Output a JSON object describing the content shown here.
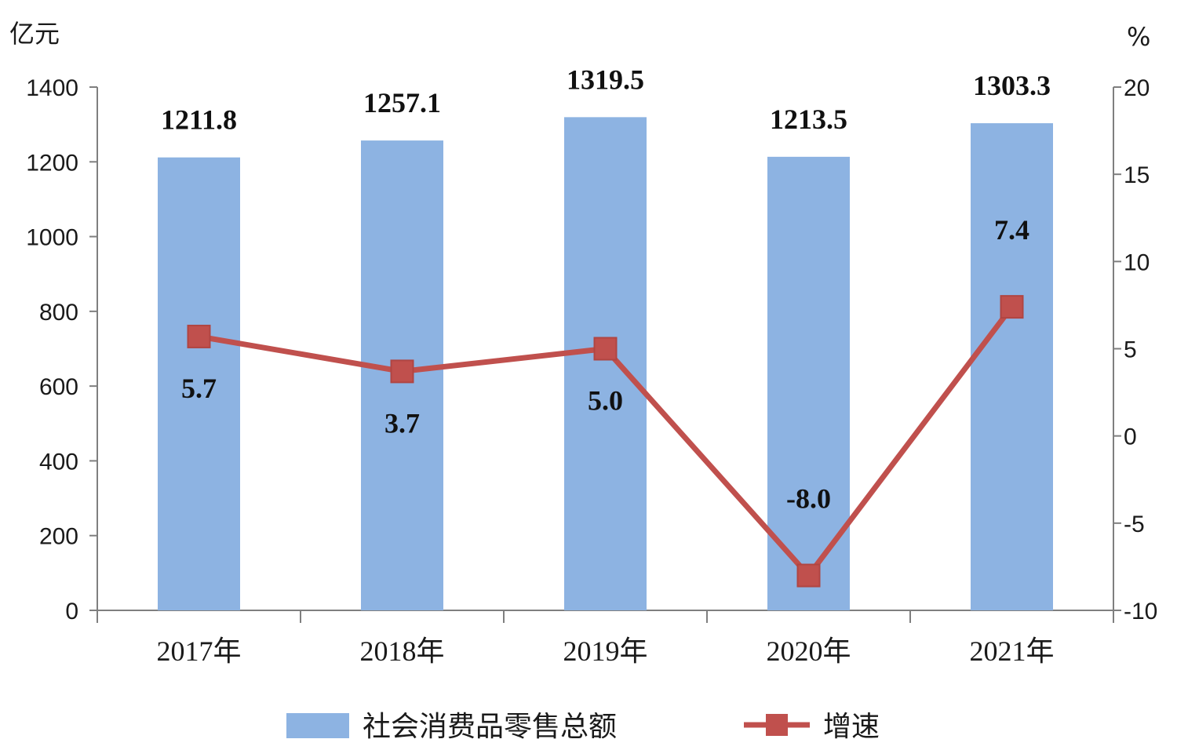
{
  "chart_data": {
    "type": "bar",
    "categories": [
      "2017年",
      "2018年",
      "2019年",
      "2020年",
      "2021年"
    ],
    "series": [
      {
        "name": "社会消费品零售总额",
        "type": "bar",
        "axis": "left",
        "color": "#8DB3E2",
        "values": [
          1211.8,
          1257.1,
          1319.5,
          1213.5,
          1303.3
        ],
        "labels": [
          "1211.8",
          "1257.1",
          "1319.5",
          "1213.5",
          "1303.3"
        ]
      },
      {
        "name": "增速",
        "type": "line",
        "axis": "right",
        "color": "#C0504D",
        "values": [
          5.7,
          3.7,
          5.0,
          -8.0,
          7.4
        ],
        "labels": [
          "5.7",
          "3.7",
          "5.0",
          "-8.0",
          "7.4"
        ]
      }
    ],
    "y_left": {
      "unit": "亿元",
      "range": [
        0,
        1400
      ],
      "ticks": [
        "0",
        "200",
        "400",
        "600",
        "800",
        "1000",
        "1200",
        "1400"
      ]
    },
    "y_right": {
      "unit": "%",
      "range": [
        -10,
        20
      ],
      "ticks": [
        "-10",
        "-5",
        "0",
        "5",
        "10",
        "15",
        "20"
      ]
    },
    "grid": false,
    "legend": "bottom"
  }
}
